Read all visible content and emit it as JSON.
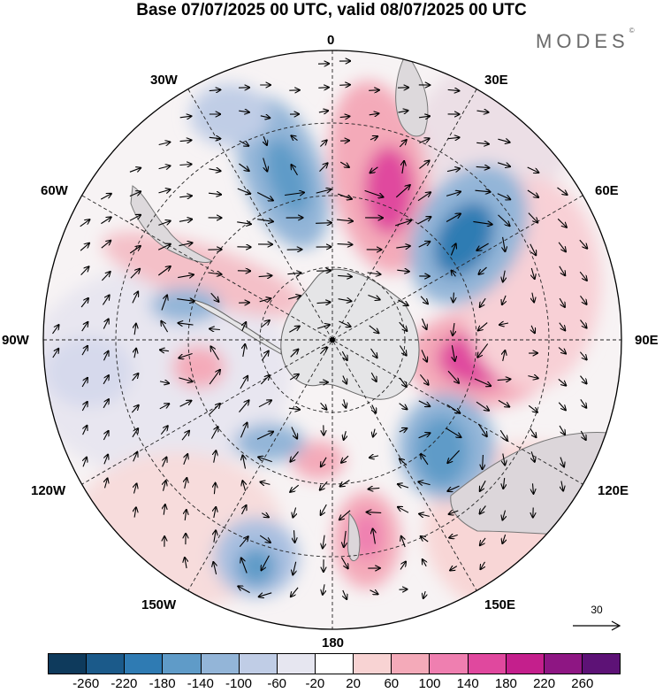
{
  "title": "Base 07/07/2025 00 UTC, valid 08/07/2025 00 UTC",
  "brand": {
    "text": "MODES",
    "mark": "©"
  },
  "map": {
    "projection": "south-polar-stereographic",
    "longitude_labels": {
      "top": "0",
      "top_right": "30E",
      "right_upper": "60E",
      "right": "90E",
      "right_lower": "120E",
      "bottom_right": "150E",
      "bottom": "180",
      "bottom_left": "150W",
      "left_lower": "120W",
      "left": "90W",
      "left_upper": "60W",
      "top_left": "30W"
    },
    "vector_reference": {
      "value": "30",
      "icon": "arrow-right-icon"
    },
    "graticule": "dashed",
    "anomaly_centers": [
      {
        "sign": "positive",
        "level": 180,
        "near": "90E"
      },
      {
        "sign": "positive",
        "level": 180,
        "near": "20E"
      },
      {
        "sign": "negative",
        "level": -180,
        "near": "50E"
      },
      {
        "sign": "negative",
        "level": -180,
        "near": "30W"
      },
      {
        "sign": "negative",
        "level": -180,
        "near": "120E"
      },
      {
        "sign": "negative",
        "level": -140,
        "near": "150W"
      },
      {
        "sign": "positive",
        "level": 140,
        "near": "160E"
      }
    ]
  },
  "colorbar": {
    "colors": [
      "#0e3a5c",
      "#1b5a8a",
      "#2f7bb3",
      "#5f9bc8",
      "#93b5d8",
      "#c0cde6",
      "#e6e6f0",
      "#ffffff",
      "#f8d3d3",
      "#f4aab9",
      "#ef7fb0",
      "#e0489e",
      "#c41f8c",
      "#8e1683",
      "#5d1276"
    ],
    "ticks": [
      "-260",
      "-220",
      "-180",
      "-140",
      "-100",
      "-60",
      "-20",
      "20",
      "60",
      "100",
      "140",
      "180",
      "220",
      "260"
    ]
  }
}
